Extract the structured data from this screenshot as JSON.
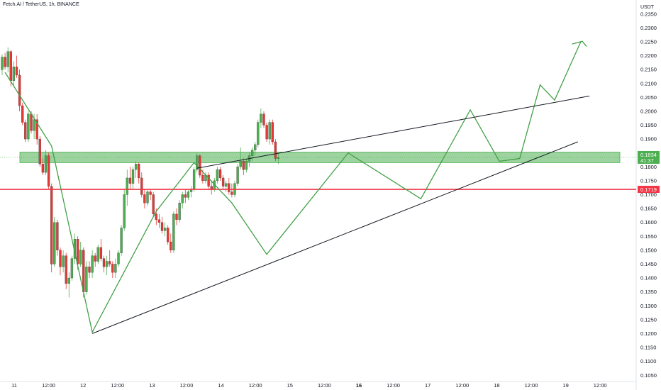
{
  "header": {
    "symbol_line": "Fetch.AI / TetherUS, 1h, BINANCE"
  },
  "chart_data": {
    "type": "candlestick",
    "title": "Fetch.AI / TetherUS, 1h, BINANCE",
    "y_unit": "USDT",
    "y_ticks": [
      "0.2350",
      "0.2300",
      "0.2250",
      "0.2200",
      "0.2150",
      "0.2100",
      "0.2050",
      "0.2000",
      "0.1950",
      "0.1900",
      "0.1850",
      "0.1800",
      "0.1750",
      "0.1700",
      "0.1650",
      "0.1600",
      "0.1550",
      "0.1500",
      "0.1450",
      "0.1400",
      "0.1350",
      "0.1300",
      "0.1250",
      "0.1200",
      "0.1150",
      "0.1100",
      "0.1050"
    ],
    "x_ticks": [
      {
        "label": "11",
        "bold": false
      },
      {
        "label": "12:00",
        "bold": false
      },
      {
        "label": "12",
        "bold": false
      },
      {
        "label": "12:00",
        "bold": false
      },
      {
        "label": "13",
        "bold": false
      },
      {
        "label": "12:00",
        "bold": false
      },
      {
        "label": "14",
        "bold": false
      },
      {
        "label": "12:00",
        "bold": false
      },
      {
        "label": "15",
        "bold": false
      },
      {
        "label": "12:00",
        "bold": false
      },
      {
        "label": "16",
        "bold": true
      },
      {
        "label": "12:00",
        "bold": false
      },
      {
        "label": "17",
        "bold": false
      },
      {
        "label": "12:00",
        "bold": false
      },
      {
        "label": "18",
        "bold": false
      },
      {
        "label": "12:00",
        "bold": false
      },
      {
        "label": "19",
        "bold": false
      },
      {
        "label": "12:00",
        "bold": false
      }
    ],
    "y_range": [
      0.103,
      0.238
    ],
    "price_tag": {
      "price": "0.1834",
      "countdown": "41:37",
      "value": 0.1834,
      "color": "#4caf50"
    },
    "support_tag": {
      "price": "0.1719",
      "value": 0.1719,
      "color": "#f23645"
    },
    "zone": {
      "low": 0.1815,
      "high": 0.1853,
      "color": "#4caf50"
    },
    "candles": [
      [
        0.215,
        0.2205,
        0.213,
        0.2195
      ],
      [
        0.2195,
        0.221,
        0.215,
        0.216
      ],
      [
        0.216,
        0.223,
        0.214,
        0.2215
      ],
      [
        0.2215,
        0.222,
        0.209,
        0.211
      ],
      [
        0.211,
        0.218,
        0.209,
        0.216
      ],
      [
        0.216,
        0.22,
        0.212,
        0.213
      ],
      [
        0.213,
        0.215,
        0.2,
        0.202
      ],
      [
        0.202,
        0.203,
        0.195,
        0.196
      ],
      [
        0.196,
        0.197,
        0.189,
        0.19
      ],
      [
        0.19,
        0.2,
        0.189,
        0.199
      ],
      [
        0.199,
        0.2,
        0.192,
        0.193
      ],
      [
        0.193,
        0.199,
        0.19,
        0.197
      ],
      [
        0.197,
        0.199,
        0.188,
        0.19
      ],
      [
        0.19,
        0.191,
        0.18,
        0.181
      ],
      [
        0.181,
        0.183,
        0.177,
        0.178
      ],
      [
        0.178,
        0.186,
        0.177,
        0.184
      ],
      [
        0.184,
        0.185,
        0.172,
        0.173
      ],
      [
        0.173,
        0.174,
        0.142,
        0.145
      ],
      [
        0.145,
        0.162,
        0.144,
        0.16
      ],
      [
        0.16,
        0.161,
        0.148,
        0.15
      ],
      [
        0.15,
        0.151,
        0.141,
        0.144
      ],
      [
        0.144,
        0.15,
        0.142,
        0.148
      ],
      [
        0.148,
        0.149,
        0.136,
        0.138
      ],
      [
        0.138,
        0.142,
        0.133,
        0.14
      ],
      [
        0.14,
        0.148,
        0.139,
        0.147
      ],
      [
        0.147,
        0.156,
        0.145,
        0.154
      ],
      [
        0.154,
        0.155,
        0.143,
        0.145
      ],
      [
        0.145,
        0.153,
        0.144,
        0.15
      ],
      [
        0.15,
        0.151,
        0.133,
        0.135
      ],
      [
        0.135,
        0.146,
        0.134,
        0.144
      ],
      [
        0.144,
        0.146,
        0.14,
        0.142
      ],
      [
        0.142,
        0.15,
        0.14,
        0.148
      ],
      [
        0.148,
        0.149,
        0.144,
        0.146
      ],
      [
        0.146,
        0.152,
        0.145,
        0.151
      ],
      [
        0.151,
        0.154,
        0.146,
        0.147
      ],
      [
        0.147,
        0.148,
        0.142,
        0.144
      ],
      [
        0.144,
        0.148,
        0.141,
        0.146
      ],
      [
        0.146,
        0.15,
        0.144,
        0.145
      ],
      [
        0.145,
        0.146,
        0.14,
        0.142
      ],
      [
        0.142,
        0.147,
        0.14,
        0.145
      ],
      [
        0.145,
        0.15,
        0.144,
        0.149
      ],
      [
        0.149,
        0.159,
        0.148,
        0.158
      ],
      [
        0.158,
        0.172,
        0.157,
        0.17
      ],
      [
        0.17,
        0.179,
        0.166,
        0.176
      ],
      [
        0.176,
        0.18,
        0.172,
        0.174
      ],
      [
        0.174,
        0.18,
        0.172,
        0.179
      ],
      [
        0.179,
        0.182,
        0.176,
        0.181
      ],
      [
        0.181,
        0.1815,
        0.174,
        0.176
      ],
      [
        0.176,
        0.178,
        0.169,
        0.17
      ],
      [
        0.17,
        0.172,
        0.165,
        0.167
      ],
      [
        0.167,
        0.172,
        0.166,
        0.171
      ],
      [
        0.171,
        0.172,
        0.168,
        0.17
      ],
      [
        0.17,
        0.171,
        0.162,
        0.163
      ],
      [
        0.163,
        0.165,
        0.159,
        0.161
      ],
      [
        0.161,
        0.163,
        0.158,
        0.16
      ],
      [
        0.16,
        0.162,
        0.156,
        0.157
      ],
      [
        0.157,
        0.16,
        0.155,
        0.158
      ],
      [
        0.158,
        0.159,
        0.152,
        0.153
      ],
      [
        0.153,
        0.156,
        0.149,
        0.15
      ],
      [
        0.15,
        0.164,
        0.149,
        0.163
      ],
      [
        0.163,
        0.165,
        0.159,
        0.161
      ],
      [
        0.161,
        0.168,
        0.16,
        0.167
      ],
      [
        0.167,
        0.171,
        0.165,
        0.17
      ],
      [
        0.17,
        0.172,
        0.167,
        0.169
      ],
      [
        0.169,
        0.172,
        0.168,
        0.171
      ],
      [
        0.171,
        0.173,
        0.169,
        0.172
      ],
      [
        0.172,
        0.18,
        0.171,
        0.179
      ],
      [
        0.179,
        0.185,
        0.178,
        0.184
      ],
      [
        0.184,
        0.1845,
        0.176,
        0.177
      ],
      [
        0.177,
        0.179,
        0.174,
        0.175
      ],
      [
        0.175,
        0.178,
        0.174,
        0.177
      ],
      [
        0.177,
        0.178,
        0.172,
        0.173
      ],
      [
        0.173,
        0.175,
        0.17,
        0.172
      ],
      [
        0.172,
        0.176,
        0.171,
        0.175
      ],
      [
        0.175,
        0.18,
        0.174,
        0.179
      ],
      [
        0.179,
        0.18,
        0.175,
        0.176
      ],
      [
        0.176,
        0.177,
        0.172,
        0.173
      ],
      [
        0.173,
        0.175,
        0.171,
        0.174
      ],
      [
        0.174,
        0.176,
        0.17,
        0.171
      ],
      [
        0.171,
        0.174,
        0.169,
        0.17
      ],
      [
        0.17,
        0.175,
        0.169,
        0.174
      ],
      [
        0.174,
        0.181,
        0.173,
        0.18
      ],
      [
        0.18,
        0.187,
        0.179,
        0.182
      ],
      [
        0.182,
        0.183,
        0.177,
        0.179
      ],
      [
        0.179,
        0.183,
        0.178,
        0.182
      ],
      [
        0.182,
        0.185,
        0.18,
        0.184
      ],
      [
        0.184,
        0.187,
        0.182,
        0.186
      ],
      [
        0.186,
        0.189,
        0.184,
        0.188
      ],
      [
        0.188,
        0.197,
        0.187,
        0.196
      ],
      [
        0.196,
        0.201,
        0.194,
        0.199
      ],
      [
        0.199,
        0.2,
        0.194,
        0.195
      ],
      [
        0.195,
        0.196,
        0.189,
        0.19
      ],
      [
        0.19,
        0.197,
        0.188,
        0.196
      ],
      [
        0.196,
        0.197,
        0.188,
        0.189
      ],
      [
        0.189,
        0.19,
        0.182,
        0.183
      ],
      [
        0.183,
        0.185,
        0.181,
        0.1834
      ]
    ],
    "drawings": {
      "wave_path": [
        [
          1,
          0.214
        ],
        [
          17,
          0.1875
        ],
        [
          31,
          0.1205
        ],
        [
          53,
          0.164
        ],
        [
          66,
          0.1815
        ],
        [
          79,
          0.167
        ],
        [
          91,
          0.1485
        ],
        [
          119,
          0.185
        ],
        [
          144,
          0.1685
        ],
        [
          161,
          0.2005
        ],
        [
          171,
          0.182
        ],
        [
          178,
          0.183
        ],
        [
          185,
          0.2095
        ],
        [
          190,
          0.204
        ],
        [
          199,
          0.225
        ]
      ],
      "arrow_head": [
        [
          196,
          0.2242
        ],
        [
          199.5,
          0.2252
        ],
        [
          201,
          0.2233
        ]
      ],
      "upper_trendline": [
        [
          67,
          0.1795
        ],
        [
          202,
          0.2055
        ]
      ],
      "lower_trendline": [
        [
          31,
          0.12
        ],
        [
          198,
          0.189
        ]
      ]
    }
  }
}
